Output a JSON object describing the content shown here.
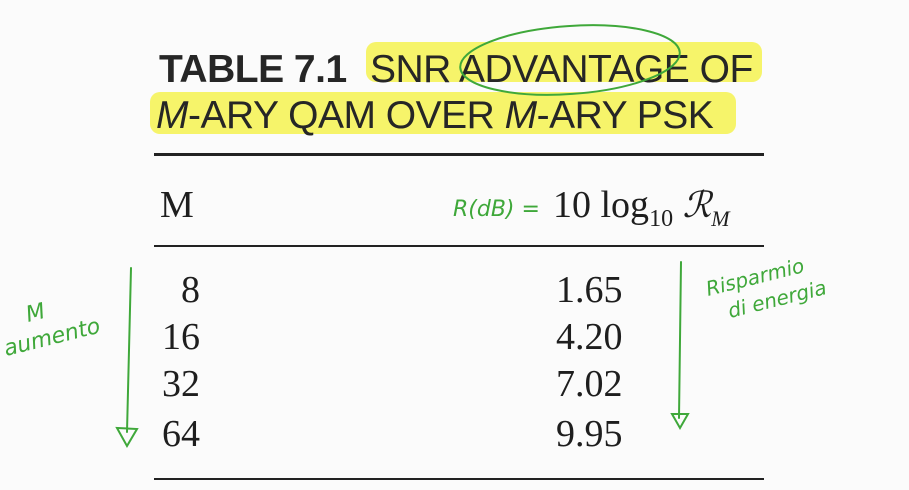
{
  "caption": {
    "label": "TABLE 7.1",
    "title_line1": "SNR ADVANTAGE OF",
    "title_line2_parts": [
      "M",
      "-ARY QAM OVER ",
      "M",
      "-ARY PSK"
    ]
  },
  "table": {
    "headers": {
      "m": "M",
      "r_prefix": "10 log",
      "r_sub": "10",
      "r_symbol": "ℛ",
      "r_symbol_sub": "M"
    },
    "rows": [
      {
        "m": "8",
        "r": "1.65"
      },
      {
        "m": "16",
        "r": "4.20"
      },
      {
        "m": "32",
        "r": "7.02"
      },
      {
        "m": "64",
        "r": "9.95"
      }
    ]
  },
  "annotations": {
    "header_note": "R(dB) =",
    "left_note_line1": "M",
    "left_note_line2": "aumento",
    "right_note_line1": "Risparmio",
    "right_note_line2": "di energia",
    "ink_color": "#3fa83a",
    "highlight_color": "#f4f250"
  }
}
